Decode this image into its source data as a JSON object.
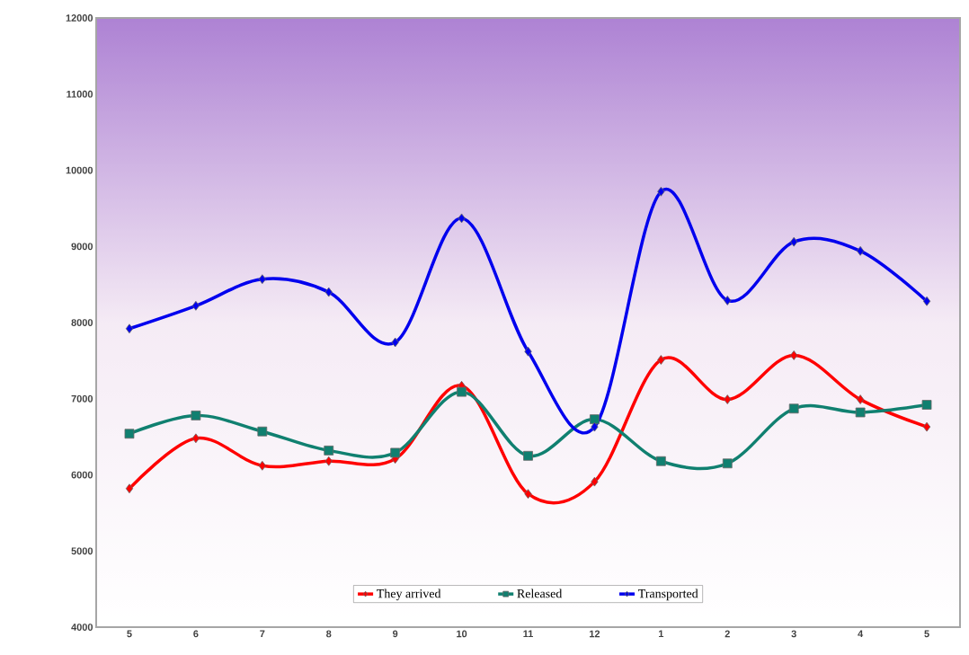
{
  "chart_data": {
    "type": "line",
    "categories": [
      "5",
      "6",
      "7",
      "8",
      "9",
      "10",
      "11",
      "12",
      "1",
      "2",
      "3",
      "4",
      "5"
    ],
    "series": [
      {
        "name": "They arrived",
        "color": "#ff0000",
        "marker": "diamond",
        "values": [
          5820,
          6480,
          6120,
          6180,
          6210,
          7170,
          5750,
          5910,
          7510,
          6990,
          7570,
          6990,
          6630
        ]
      },
      {
        "name": "Released",
        "color": "#108070",
        "marker": "square",
        "values": [
          6540,
          6780,
          6570,
          6320,
          6290,
          7090,
          6250,
          6730,
          6180,
          6150,
          6870,
          6820,
          6920
        ]
      },
      {
        "name": "Transported",
        "color": "#0000ee",
        "marker": "diamond",
        "values": [
          7920,
          8220,
          8570,
          8400,
          7740,
          9370,
          7620,
          6630,
          9720,
          8290,
          9060,
          8940,
          8280
        ]
      }
    ],
    "ylim": [
      4000,
      12000
    ],
    "yticks": [
      4000,
      5000,
      6000,
      7000,
      8000,
      9000,
      10000,
      11000,
      12000
    ],
    "grid": false,
    "legend": "bottom",
    "line_style": "solid"
  }
}
